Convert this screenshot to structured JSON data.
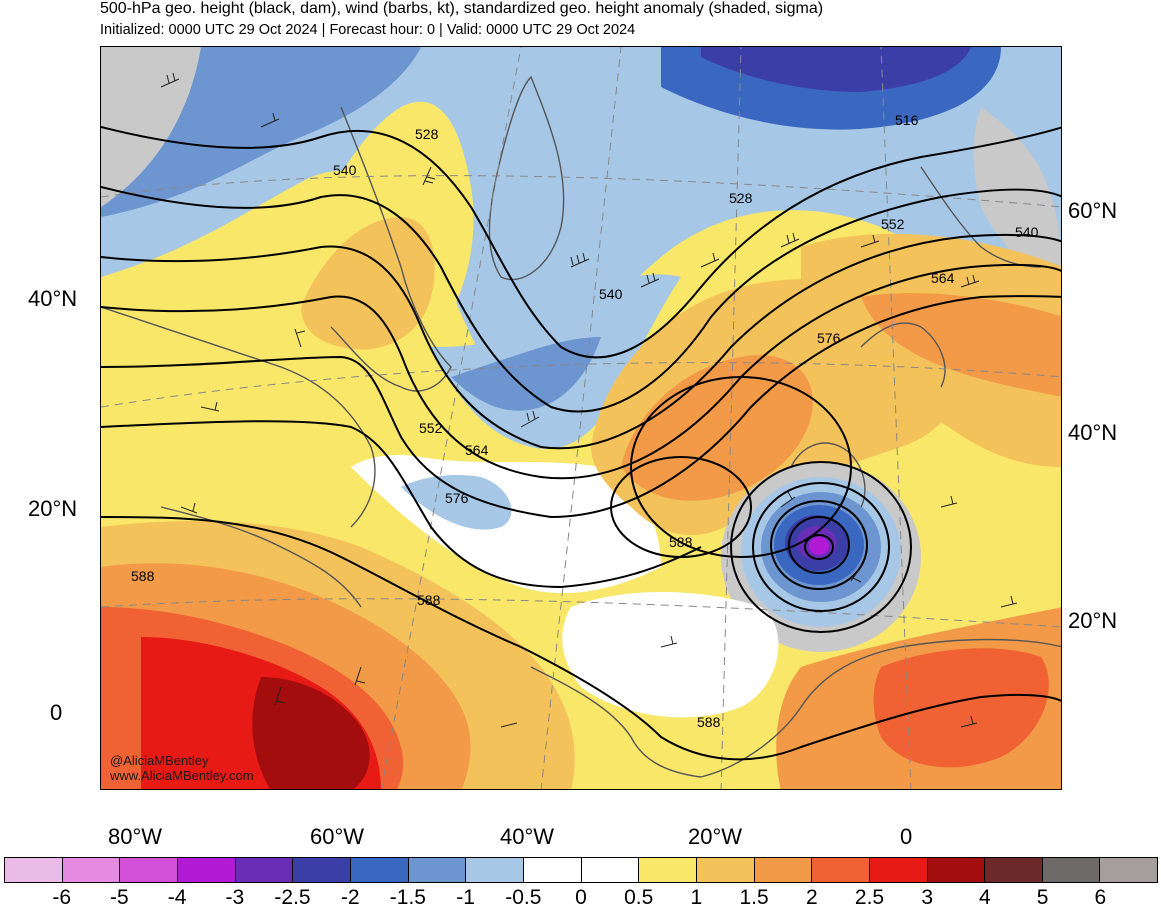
{
  "title": "500-hPa geo. height (black, dam), wind (barbs, kt), standardized geo. height anomaly (shaded, sigma)",
  "subtitle": "Initialized: 0000 UTC 29 Oct 2024 | Forecast hour: 0 | Valid: 0000 UTC 29 Oct 2024",
  "credit": {
    "handle": "@AliciaMBentley",
    "url": "www.AliciaMBentley.com"
  },
  "map": {
    "projection": "polar-stereographic",
    "region": "North Atlantic",
    "contour_color": "#000000",
    "coastline_color": "#555555",
    "contour_labels": [
      "528",
      "540",
      "516",
      "528",
      "552",
      "540",
      "564",
      "540",
      "576",
      "552",
      "564",
      "576",
      "588",
      "588",
      "588",
      "588"
    ]
  },
  "axes": {
    "left_lat_labels": [
      "40°N",
      "20°N",
      "0"
    ],
    "right_lat_labels": [
      "60°N",
      "40°N",
      "20°N"
    ],
    "lon_labels": [
      "80°W",
      "60°W",
      "40°W",
      "20°W",
      "0"
    ]
  },
  "colorbar": {
    "labels": [
      "-6",
      "-5",
      "-4",
      "-3",
      "-2.5",
      "-2",
      "-1.5",
      "-1",
      "-0.5",
      "0",
      "0.5",
      "1",
      "1.5",
      "2",
      "2.5",
      "3",
      "4",
      "5",
      "6"
    ],
    "colors": [
      "#ebbbe8",
      "#e48ae0",
      "#d550d9",
      "#b21ad6",
      "#6a2eb6",
      "#3c3ea8",
      "#3a67c0",
      "#6d95d0",
      "#a6c8e6",
      "#ffffff",
      "#ffffff",
      "#f9e76a",
      "#f4c25a",
      "#f29a48",
      "#f06234",
      "#e81a16",
      "#a40d0d",
      "#6e2a2a",
      "#6e6a6a",
      "#a69e9e"
    ]
  }
}
